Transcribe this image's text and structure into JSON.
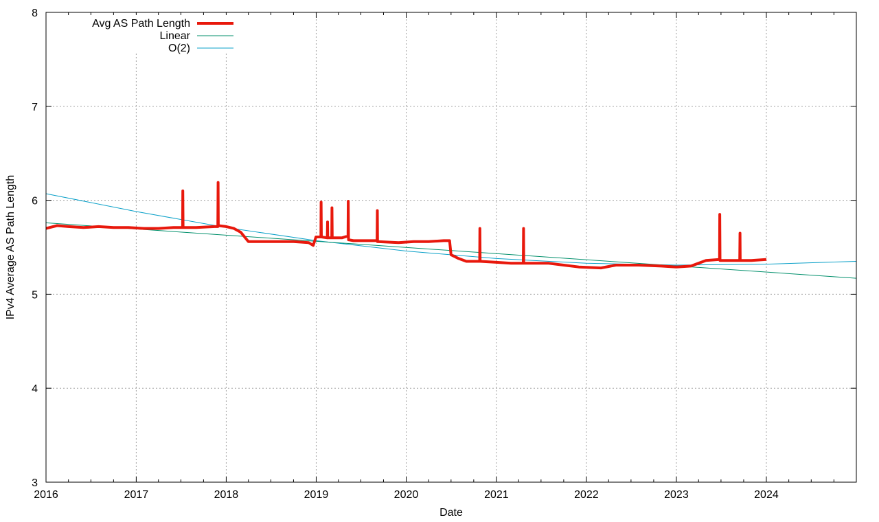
{
  "chart_data": {
    "type": "line",
    "xlabel": "Date",
    "ylabel": "IPv4 Average AS Path Length",
    "xlim": [
      "2016-01-01",
      "2024-12-31"
    ],
    "ylim": [
      3,
      8
    ],
    "x_ticks": [
      "2016",
      "2017",
      "2018",
      "2019",
      "2020",
      "2021",
      "2022",
      "2023",
      "2024"
    ],
    "y_ticks": [
      "3",
      "4",
      "5",
      "6",
      "7",
      "8"
    ],
    "grid": true,
    "legend_position": "top-left",
    "series": [
      {
        "name": "Avg AS Path Length",
        "color": "#e8180c",
        "points": [
          [
            "2016-01-01",
            5.7
          ],
          [
            "2016-02-15",
            5.73
          ],
          [
            "2016-04-01",
            5.72
          ],
          [
            "2016-06-01",
            5.71
          ],
          [
            "2016-08-01",
            5.72
          ],
          [
            "2016-10-01",
            5.71
          ],
          [
            "2016-12-01",
            5.71
          ],
          [
            "2017-02-01",
            5.7
          ],
          [
            "2017-04-01",
            5.7
          ],
          [
            "2017-06-01",
            5.71
          ],
          [
            "2017-07-08",
            5.71
          ],
          [
            "2017-07-09",
            6.1
          ],
          [
            "2017-07-10",
            5.71
          ],
          [
            "2017-09-01",
            5.71
          ],
          [
            "2017-11-15",
            5.72
          ],
          [
            "2017-11-28",
            5.72
          ],
          [
            "2017-11-29",
            6.19
          ],
          [
            "2017-11-30",
            5.73
          ],
          [
            "2018-01-01",
            5.72
          ],
          [
            "2018-02-01",
            5.7
          ],
          [
            "2018-03-01",
            5.66
          ],
          [
            "2018-04-01",
            5.56
          ],
          [
            "2018-06-01",
            5.56
          ],
          [
            "2018-08-01",
            5.56
          ],
          [
            "2018-10-01",
            5.56
          ],
          [
            "2018-12-01",
            5.55
          ],
          [
            "2018-12-20",
            5.52
          ],
          [
            "2018-12-31",
            5.61
          ],
          [
            "2019-01-20",
            5.61
          ],
          [
            "2019-01-21",
            5.98
          ],
          [
            "2019-01-22",
            5.61
          ],
          [
            "2019-02-15",
            5.6
          ],
          [
            "2019-02-16",
            5.77
          ],
          [
            "2019-02-17",
            5.6
          ],
          [
            "2019-03-05",
            5.6
          ],
          [
            "2019-03-06",
            5.92
          ],
          [
            "2019-03-07",
            5.6
          ],
          [
            "2019-04-15",
            5.6
          ],
          [
            "2019-05-10",
            5.62
          ],
          [
            "2019-05-11",
            5.99
          ],
          [
            "2019-05-12",
            5.58
          ],
          [
            "2019-06-01",
            5.57
          ],
          [
            "2019-09-01",
            5.57
          ],
          [
            "2019-09-05",
            5.57
          ],
          [
            "2019-09-06",
            5.89
          ],
          [
            "2019-09-07",
            5.56
          ],
          [
            "2019-12-01",
            5.55
          ],
          [
            "2020-02-01",
            5.56
          ],
          [
            "2020-04-01",
            5.56
          ],
          [
            "2020-06-01",
            5.57
          ],
          [
            "2020-06-25",
            5.57
          ],
          [
            "2020-07-01",
            5.42
          ],
          [
            "2020-08-01",
            5.38
          ],
          [
            "2020-09-01",
            5.35
          ],
          [
            "2020-10-25",
            5.35
          ],
          [
            "2020-10-26",
            5.7
          ],
          [
            "2020-10-27",
            5.35
          ],
          [
            "2021-01-01",
            5.34
          ],
          [
            "2021-03-01",
            5.33
          ],
          [
            "2021-04-01",
            5.33
          ],
          [
            "2021-04-20",
            5.33
          ],
          [
            "2021-04-21",
            5.7
          ],
          [
            "2021-04-22",
            5.33
          ],
          [
            "2021-06-01",
            5.33
          ],
          [
            "2021-08-01",
            5.33
          ],
          [
            "2021-10-01",
            5.31
          ],
          [
            "2021-12-01",
            5.29
          ],
          [
            "2022-03-01",
            5.28
          ],
          [
            "2022-05-01",
            5.31
          ],
          [
            "2022-08-01",
            5.31
          ],
          [
            "2022-11-01",
            5.3
          ],
          [
            "2023-01-01",
            5.29
          ],
          [
            "2023-03-01",
            5.3
          ],
          [
            "2023-05-01",
            5.36
          ],
          [
            "2023-06-25",
            5.37
          ],
          [
            "2023-06-26",
            5.85
          ],
          [
            "2023-06-27",
            5.36
          ],
          [
            "2023-09-15",
            5.36
          ],
          [
            "2023-09-16",
            5.65
          ],
          [
            "2023-09-17",
            5.36
          ],
          [
            "2023-11-01",
            5.36
          ],
          [
            "2024-01-01",
            5.37
          ]
        ]
      },
      {
        "name": "Linear",
        "color": "#008f6b",
        "points": [
          [
            "2016-01-01",
            5.76
          ],
          [
            "2024-12-31",
            5.17
          ]
        ]
      },
      {
        "name": "O(2)",
        "color": "#0aa0c8",
        "points": [
          [
            "2016-01-01",
            6.07
          ],
          [
            "2017-01-01",
            5.88
          ],
          [
            "2018-01-01",
            5.71
          ],
          [
            "2019-01-01",
            5.57
          ],
          [
            "2020-01-01",
            5.46
          ],
          [
            "2021-01-01",
            5.38
          ],
          [
            "2022-01-01",
            5.33
          ],
          [
            "2023-01-01",
            5.31
          ],
          [
            "2024-01-01",
            5.32
          ],
          [
            "2024-12-31",
            5.35
          ]
        ]
      }
    ]
  }
}
